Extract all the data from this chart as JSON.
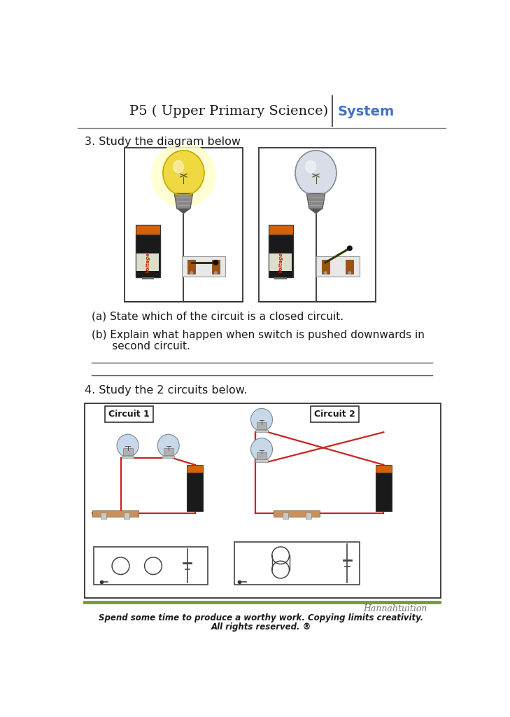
{
  "page_bg": "#ffffff",
  "header_title": "P5 ( Upper Primary Science)",
  "header_subtitle": "System",
  "header_title_color": "#1a1a1a",
  "header_subtitle_color": "#4472c4",
  "header_line_color": "#808080",
  "q3_label": "3. Study the diagram below",
  "q3a_text": "(a) State which of the circuit is a closed circuit.",
  "q3b_line1": "(b) Explain what happen when switch is pushed downwards in",
  "q3b_line2": "      second circuit.",
  "q4_label": "4. Study the 2 circuits below.",
  "circuit1_label": "Circuit 1",
  "circuit2_label": "Circuit 2",
  "footer_brand": "Hannahtuition",
  "footer_line1": "Spend some time to produce a worthy work. Copying limits creativity.",
  "footer_line2": "All rights reserved. ®",
  "answer_line_color": "#555555",
  "box_color": "#333333",
  "text_color": "#1a1a1a",
  "wire_color": "#cc2222",
  "footer_line_color": "#7a9a3a"
}
